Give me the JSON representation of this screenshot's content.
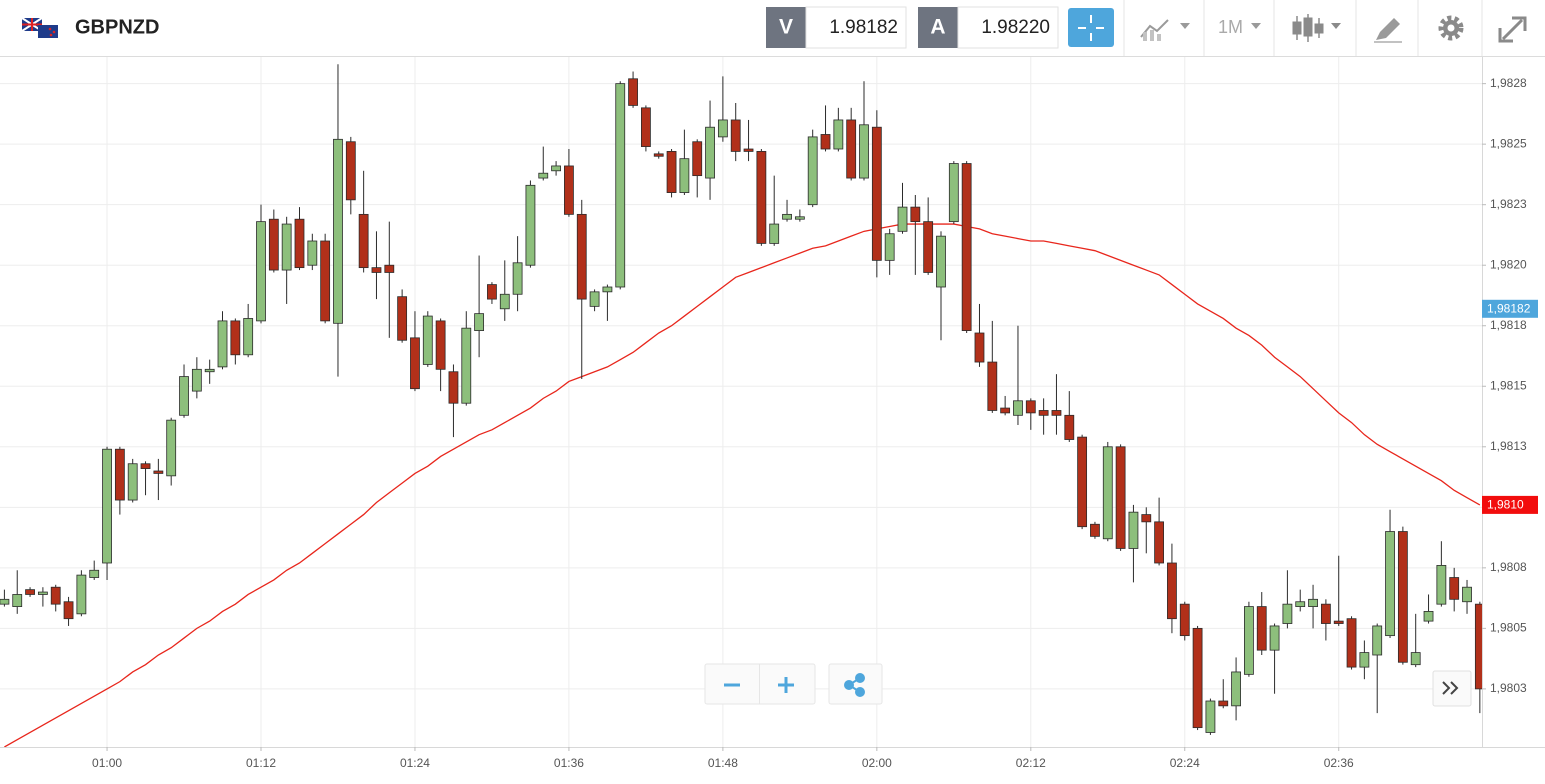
{
  "toolbar": {
    "symbol": "GBPNZD",
    "bid_label": "V",
    "bid": "1.98182",
    "ask_label": "A",
    "ask": "1.98220",
    "timeframe": "1M"
  },
  "chart_data": {
    "type": "candlestick",
    "categories": [
      null,
      null,
      null,
      null,
      null,
      null,
      null,
      null,
      "01:00",
      null,
      null,
      null,
      null,
      null,
      null,
      null,
      null,
      null,
      null,
      null,
      "01:12",
      null,
      null,
      null,
      null,
      null,
      null,
      null,
      null,
      null,
      null,
      null,
      "01:24",
      null,
      null,
      null,
      null,
      null,
      null,
      null,
      null,
      null,
      null,
      null,
      "01:36",
      null,
      null,
      null,
      null,
      null,
      null,
      null,
      null,
      null,
      null,
      null,
      "01:48",
      null,
      null,
      null,
      null,
      null,
      null,
      null,
      null,
      null,
      null,
      null,
      "02:00",
      null,
      null,
      null,
      null,
      null,
      null,
      null,
      null,
      null,
      null,
      null,
      "02:12",
      null,
      null,
      null,
      null,
      null,
      null,
      null,
      null,
      null,
      null,
      null,
      "02:24",
      null,
      null,
      null,
      null,
      null,
      null,
      null,
      null,
      null,
      null,
      null,
      "02:36",
      null,
      null,
      null,
      null,
      null,
      null,
      null,
      null,
      null,
      null,
      null
    ],
    "open": [
      1.9806,
      1.98059,
      1.98066,
      1.98064,
      1.98067,
      1.98061,
      1.98056,
      1.98071,
      1.98077,
      1.98124,
      1.98103,
      1.98118,
      1.98115,
      1.98113,
      1.98138,
      1.98148,
      1.98156,
      1.98158,
      1.98177,
      1.98163,
      1.98177,
      1.98219,
      1.98198,
      1.98219,
      1.982,
      1.9821,
      1.98176,
      1.98251,
      1.98221,
      1.98199,
      1.982,
      1.98187,
      1.9817,
      1.98159,
      1.98177,
      1.98156,
      1.98143,
      1.98173,
      1.98192,
      1.98182,
      1.98188,
      1.982,
      1.98236,
      1.98239,
      1.98241,
      1.98221,
      1.98183,
      1.98189,
      1.98191,
      1.98277,
      1.98265,
      1.98246,
      1.98247,
      1.9823,
      1.98251,
      1.98236,
      1.98253,
      1.9826,
      1.98248,
      1.98247,
      1.98209,
      1.98219,
      1.98219,
      1.98225,
      1.98254,
      1.98248,
      1.9826,
      1.98236,
      1.98257,
      1.98202,
      1.98214,
      1.98224,
      1.98218,
      1.98191,
      1.98218,
      1.98242,
      1.98172,
      1.9816,
      1.98141,
      1.98138,
      1.98144,
      1.9814,
      1.9814,
      1.98138,
      1.98129,
      1.98093,
      1.98087,
      1.98125,
      1.98083,
      1.98097,
      1.98094,
      1.98077,
      1.9806,
      1.9805,
      1.98007,
      1.9802,
      1.98018,
      1.98031,
      1.98059,
      1.98041,
      1.98052,
      1.98059,
      1.98059,
      1.9806,
      1.98053,
      1.98054,
      1.98034,
      1.98039,
      1.98047,
      1.9809,
      1.98035,
      1.98053,
      1.9806,
      1.98071,
      1.98061,
      1.9806
    ],
    "high": [
      1.98066,
      1.98074,
      1.98067,
      1.98067,
      1.98068,
      1.98063,
      1.98074,
      1.98078,
      1.98125,
      1.98125,
      1.9812,
      1.98119,
      1.9812,
      1.98137,
      1.98159,
      1.98162,
      1.98161,
      1.98181,
      1.98178,
      1.98184,
      1.98225,
      1.98223,
      1.9822,
      1.98224,
      1.98213,
      1.98213,
      1.98283,
      1.98253,
      1.98239,
      1.98214,
      1.98218,
      1.9819,
      1.98181,
      1.98181,
      1.98178,
      1.98159,
      1.98181,
      1.98204,
      1.98193,
      1.98202,
      1.98212,
      1.98235,
      1.98249,
      1.98243,
      1.98248,
      1.98227,
      1.9819,
      1.98192,
      1.98276,
      1.9828,
      1.98266,
      1.98247,
      1.98248,
      1.98256,
      1.98252,
      1.98268,
      1.98278,
      1.98267,
      1.9826,
      1.98248,
      1.98237,
      1.98227,
      1.98223,
      1.98256,
      1.98266,
      1.98265,
      1.98265,
      1.98276,
      1.98264,
      1.98215,
      1.98234,
      1.98229,
      1.98228,
      1.98214,
      1.98243,
      1.98243,
      1.98184,
      1.98177,
      1.98146,
      1.98175,
      1.98145,
      1.98145,
      1.98155,
      1.98148,
      1.9813,
      1.98094,
      1.98127,
      1.98126,
      1.98101,
      1.981,
      1.98104,
      1.98085,
      1.98061,
      1.98051,
      1.98021,
      1.98029,
      1.98038,
      1.98061,
      1.98065,
      1.98052,
      1.98074,
      1.98066,
      1.98068,
      1.98062,
      1.9808,
      1.98055,
      1.98045,
      1.98052,
      1.98099,
      1.98092,
      1.98056,
      1.98064,
      1.98086,
      1.98075,
      1.9807,
      1.98061
    ],
    "low": [
      1.98059,
      1.98056,
      1.98063,
      1.98059,
      1.98057,
      1.98051,
      1.98055,
      1.9807,
      1.9807,
      1.98097,
      1.98102,
      1.98105,
      1.98103,
      1.98109,
      1.98137,
      1.98145,
      1.98151,
      1.98157,
      1.98159,
      1.98162,
      1.98176,
      1.98197,
      1.98184,
      1.98198,
      1.98198,
      1.98176,
      1.98154,
      1.98221,
      1.98197,
      1.98186,
      1.9817,
      1.98168,
      1.98148,
      1.98158,
      1.98148,
      1.98129,
      1.98142,
      1.98162,
      1.98184,
      1.98177,
      1.98181,
      1.98199,
      1.98235,
      1.98237,
      1.9822,
      1.98153,
      1.98181,
      1.98177,
      1.9819,
      1.98265,
      1.98247,
      1.98244,
      1.98228,
      1.98229,
      1.98228,
      1.98227,
      1.98251,
      1.98243,
      1.98243,
      1.98208,
      1.98208,
      1.98218,
      1.98218,
      1.98224,
      1.98247,
      1.98247,
      1.98235,
      1.98235,
      1.98195,
      1.98196,
      1.98213,
      1.98196,
      1.98196,
      1.98169,
      1.98217,
      1.98172,
      1.98158,
      1.98139,
      1.98138,
      1.98134,
      1.98132,
      1.9813,
      1.9813,
      1.98127,
      1.98091,
      1.98087,
      1.98086,
      1.98082,
      1.98069,
      1.98081,
      1.98076,
      1.98048,
      1.98045,
      1.98008,
      1.98006,
      1.98017,
      1.98012,
      1.9803,
      1.98039,
      1.98023,
      1.9805,
      1.98057,
      1.9805,
      1.98045,
      1.98051,
      1.98033,
      1.98029,
      1.98015,
      1.98046,
      1.98035,
      1.98034,
      1.98052,
      1.98059,
      1.98057,
      1.98056,
      1.98015
    ],
    "close": [
      1.98062,
      1.98064,
      1.98064,
      1.98065,
      1.9806,
      1.98054,
      1.98072,
      1.98074,
      1.98124,
      1.98103,
      1.98118,
      1.98116,
      1.98114,
      1.98136,
      1.98154,
      1.98157,
      1.98157,
      1.98177,
      1.98163,
      1.98178,
      1.98218,
      1.98198,
      1.98217,
      1.98199,
      1.9821,
      1.98177,
      1.98252,
      1.98227,
      1.98199,
      1.98197,
      1.98197,
      1.98169,
      1.98149,
      1.98179,
      1.98157,
      1.98143,
      1.98174,
      1.9818,
      1.98186,
      1.98188,
      1.98201,
      1.98233,
      1.98238,
      1.98241,
      1.98221,
      1.98186,
      1.98189,
      1.98191,
      1.98275,
      1.98266,
      1.98249,
      1.98245,
      1.9823,
      1.98244,
      1.98237,
      1.98257,
      1.9826,
      1.98247,
      1.98247,
      1.98209,
      1.98217,
      1.98221,
      1.9822,
      1.98253,
      1.98248,
      1.9826,
      1.98236,
      1.98258,
      1.98202,
      1.98213,
      1.98224,
      1.98218,
      1.98197,
      1.98212,
      1.98242,
      1.98173,
      1.9816,
      1.9814,
      1.98139,
      1.98144,
      1.98139,
      1.98138,
      1.98138,
      1.98128,
      1.98092,
      1.98088,
      1.98125,
      1.98083,
      1.98098,
      1.98094,
      1.98077,
      1.98054,
      1.98047,
      1.98009,
      1.9802,
      1.98018,
      1.98032,
      1.98059,
      1.98041,
      1.98051,
      1.9806,
      1.98061,
      1.98062,
      1.98052,
      1.98052,
      1.98034,
      1.9804,
      1.98051,
      1.9809,
      1.98036,
      1.9804,
      1.98057,
      1.98076,
      1.98062,
      1.98067,
      1.98025
    ],
    "up_color": "#8dbf7c",
    "down_color": "#b1301a",
    "outline_color": "#2b2b2b",
    "moving_average": {
      "color": "#e8261c",
      "values": [
        1.98001,
        1.98004,
        1.98007,
        1.9801,
        1.98013,
        1.98016,
        1.98019,
        1.98022,
        1.98025,
        1.98028,
        1.98032,
        1.98035,
        1.98039,
        1.98042,
        1.98046,
        1.9805,
        1.98053,
        1.98057,
        1.9806,
        1.98064,
        1.98067,
        1.9807,
        1.98074,
        1.98077,
        1.98081,
        1.98085,
        1.98089,
        1.98093,
        1.98097,
        1.98102,
        1.98106,
        1.9811,
        1.98114,
        1.98117,
        1.98121,
        1.98124,
        1.98127,
        1.9813,
        1.98132,
        1.98135,
        1.98138,
        1.98141,
        1.98145,
        1.98148,
        1.98152,
        1.98154,
        1.98156,
        1.98158,
        1.98161,
        1.98164,
        1.98168,
        1.98172,
        1.98175,
        1.98179,
        1.98183,
        1.98187,
        1.98191,
        1.98195,
        1.98197,
        1.98199,
        1.98201,
        1.98203,
        1.98205,
        1.98207,
        1.98208,
        1.9821,
        1.98212,
        1.98214,
        1.98215,
        1.98216,
        1.98217,
        1.98217,
        1.98217,
        1.98217,
        1.98217,
        1.98216,
        1.98215,
        1.98213,
        1.98212,
        1.98211,
        1.9821,
        1.9821,
        1.98209,
        1.98208,
        1.98207,
        1.98206,
        1.98204,
        1.98202,
        1.982,
        1.98198,
        1.98196,
        1.98192,
        1.98188,
        1.98184,
        1.98181,
        1.98178,
        1.98174,
        1.98171,
        1.98167,
        1.98162,
        1.98158,
        1.98154,
        1.98149,
        1.98144,
        1.98139,
        1.98135,
        1.9813,
        1.98126,
        1.98123,
        1.9812,
        1.98117,
        1.98114,
        1.98111,
        1.98107,
        1.98104,
        1.98101
      ]
    },
    "ylim": [
      1.98001,
      1.98286
    ],
    "yticks": [
      {
        "value": 1.98275,
        "label": "1,9828"
      },
      {
        "value": 1.9825,
        "label": "1,9825"
      },
      {
        "value": 1.98225,
        "label": "1,9823"
      },
      {
        "value": 1.982,
        "label": "1,9820"
      },
      {
        "value": 1.98175,
        "label": "1,9818"
      },
      {
        "value": 1.9815,
        "label": "1,9815"
      },
      {
        "value": 1.98125,
        "label": "1,9813"
      },
      {
        "value": 1.981,
        "label": "1,9810"
      },
      {
        "value": 1.98075,
        "label": "1,9808"
      },
      {
        "value": 1.9805,
        "label": "1,9805"
      },
      {
        "value": 1.98025,
        "label": "1,9803"
      }
    ],
    "grid": true,
    "price_markers": [
      {
        "value": 1.98182,
        "label": "1,98182",
        "color": "#4ea6dc"
      },
      {
        "value": 1.98101,
        "label": "1,9810",
        "color": "#f20d0d"
      }
    ]
  }
}
